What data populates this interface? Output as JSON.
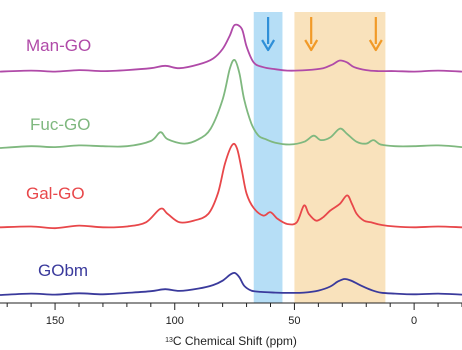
{
  "chart_data": {
    "type": "line",
    "title": "",
    "xlabel": {
      "superscript": "13",
      "text": "C Chemical Shift (ppm)"
    },
    "ylabel": "",
    "x_direction": "decreasing",
    "xlim": [
      173,
      -20
    ],
    "x_ticks": [
      150,
      100,
      50,
      0
    ],
    "x_tick_labels": [
      "150",
      "100",
      "50",
      "0"
    ],
    "grid": false,
    "legend": "none",
    "highlight_bands": [
      {
        "from": 67,
        "to": 55,
        "color": "#a9d8f5"
      },
      {
        "from": 50,
        "to": 12,
        "color": "#f8ddb0"
      }
    ],
    "arrows": [
      {
        "x": 61,
        "series": "Man-GO",
        "color": "#2f8fd8"
      },
      {
        "x": 43,
        "series": "Man-GO",
        "color": "#f19a28"
      },
      {
        "x": 16,
        "series": "Man-GO",
        "color": "#f19a28"
      }
    ],
    "series": [
      {
        "name": "Man-GO",
        "color": "#b04aa8",
        "points": [
          [
            173,
            0.03
          ],
          [
            160,
            0.05
          ],
          [
            150,
            0.03
          ],
          [
            140,
            0.06
          ],
          [
            130,
            0.04
          ],
          [
            120,
            0.06
          ],
          [
            110,
            0.1
          ],
          [
            104,
            0.15
          ],
          [
            98,
            0.1
          ],
          [
            90,
            0.18
          ],
          [
            84,
            0.3
          ],
          [
            80,
            0.5
          ],
          [
            77,
            0.78
          ],
          [
            75,
            1.0
          ],
          [
            72,
            0.92
          ],
          [
            70,
            0.55
          ],
          [
            67,
            0.22
          ],
          [
            63,
            0.12
          ],
          [
            58,
            0.08
          ],
          [
            53,
            0.05
          ],
          [
            45,
            0.06
          ],
          [
            38,
            0.1
          ],
          [
            34,
            0.18
          ],
          [
            31,
            0.26
          ],
          [
            28,
            0.22
          ],
          [
            25,
            0.12
          ],
          [
            20,
            0.06
          ],
          [
            15,
            0.04
          ],
          [
            8,
            0.04
          ],
          [
            0,
            0.03
          ],
          [
            -10,
            0.05
          ],
          [
            -20,
            0.03
          ]
        ]
      },
      {
        "name": "Fuc-GO",
        "color": "#7fb87f",
        "points": [
          [
            173,
            0.0
          ],
          [
            160,
            0.02
          ],
          [
            150,
            0.01
          ],
          [
            140,
            0.03
          ],
          [
            130,
            0.02
          ],
          [
            120,
            0.02
          ],
          [
            110,
            0.08
          ],
          [
            106,
            0.18
          ],
          [
            103,
            0.1
          ],
          [
            96,
            0.05
          ],
          [
            90,
            0.1
          ],
          [
            85,
            0.22
          ],
          [
            80,
            0.55
          ],
          [
            77,
            0.9
          ],
          [
            75,
            1.0
          ],
          [
            73,
            0.85
          ],
          [
            71,
            0.55
          ],
          [
            68,
            0.28
          ],
          [
            65,
            0.14
          ],
          [
            62,
            0.1
          ],
          [
            58,
            0.06
          ],
          [
            52,
            0.04
          ],
          [
            46,
            0.07
          ],
          [
            42,
            0.14
          ],
          [
            39,
            0.09
          ],
          [
            35,
            0.12
          ],
          [
            31,
            0.22
          ],
          [
            28,
            0.16
          ],
          [
            24,
            0.07
          ],
          [
            20,
            0.05
          ],
          [
            17,
            0.09
          ],
          [
            14,
            0.04
          ],
          [
            8,
            0.02
          ],
          [
            0,
            0.02
          ],
          [
            -10,
            0.03
          ],
          [
            -20,
            0.01
          ]
        ]
      },
      {
        "name": "Gal-GO",
        "color": "#e8474a",
        "points": [
          [
            173,
            0.02
          ],
          [
            160,
            0.03
          ],
          [
            150,
            0.01
          ],
          [
            140,
            0.04
          ],
          [
            130,
            0.02
          ],
          [
            120,
            0.03
          ],
          [
            112,
            0.08
          ],
          [
            106,
            0.24
          ],
          [
            103,
            0.18
          ],
          [
            98,
            0.08
          ],
          [
            92,
            0.1
          ],
          [
            86,
            0.18
          ],
          [
            82,
            0.42
          ],
          [
            79,
            0.78
          ],
          [
            76,
            1.0
          ],
          [
            74,
            0.96
          ],
          [
            72,
            0.7
          ],
          [
            70,
            0.42
          ],
          [
            67,
            0.25
          ],
          [
            63,
            0.16
          ],
          [
            60,
            0.2
          ],
          [
            57,
            0.12
          ],
          [
            53,
            0.06
          ],
          [
            49,
            0.08
          ],
          [
            46,
            0.28
          ],
          [
            44,
            0.18
          ],
          [
            41,
            0.1
          ],
          [
            38,
            0.14
          ],
          [
            35,
            0.22
          ],
          [
            31,
            0.3
          ],
          [
            28,
            0.4
          ],
          [
            26,
            0.3
          ],
          [
            24,
            0.18
          ],
          [
            21,
            0.1
          ],
          [
            18,
            0.08
          ],
          [
            14,
            0.05
          ],
          [
            8,
            0.03
          ],
          [
            0,
            0.02
          ],
          [
            -10,
            0.03
          ],
          [
            -20,
            0.02
          ]
        ]
      },
      {
        "name": "GObm",
        "color": "#3a3a9c",
        "points": [
          [
            173,
            0.03
          ],
          [
            160,
            0.07
          ],
          [
            150,
            0.04
          ],
          [
            140,
            0.08
          ],
          [
            130,
            0.05
          ],
          [
            120,
            0.09
          ],
          [
            110,
            0.14
          ],
          [
            104,
            0.2
          ],
          [
            98,
            0.15
          ],
          [
            90,
            0.22
          ],
          [
            84,
            0.32
          ],
          [
            80,
            0.45
          ],
          [
            77,
            0.62
          ],
          [
            75,
            0.68
          ],
          [
            73,
            0.55
          ],
          [
            71,
            0.3
          ],
          [
            68,
            0.16
          ],
          [
            64,
            0.12
          ],
          [
            58,
            0.1
          ],
          [
            52,
            0.09
          ],
          [
            46,
            0.1
          ],
          [
            40,
            0.16
          ],
          [
            35,
            0.28
          ],
          [
            32,
            0.42
          ],
          [
            29,
            0.5
          ],
          [
            26,
            0.44
          ],
          [
            22,
            0.3
          ],
          [
            18,
            0.18
          ],
          [
            14,
            0.1
          ],
          [
            8,
            0.07
          ],
          [
            0,
            0.05
          ],
          [
            -10,
            0.07
          ],
          [
            -20,
            0.04
          ]
        ]
      }
    ]
  }
}
